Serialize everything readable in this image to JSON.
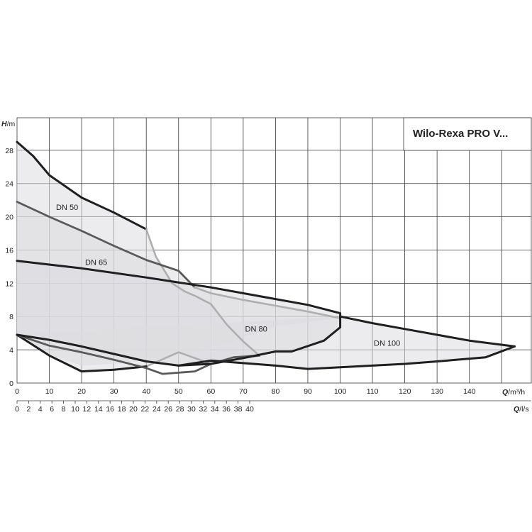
{
  "chart_data": {
    "type": "line",
    "title": "Wilo-Rexa PRO V...",
    "y_axis": {
      "label_var": "H",
      "label_unit": "/m",
      "range": [
        0,
        30
      ],
      "ticks": [
        "0",
        "4",
        "8",
        "12",
        "16",
        "20",
        "24",
        "28"
      ]
    },
    "x_axis_primary": {
      "label_var": "Q",
      "label_unit": "/m³/h",
      "range": [
        0,
        160
      ],
      "ticks": [
        "0",
        "10",
        "20",
        "30",
        "40",
        "50",
        "60",
        "70",
        "80",
        "90",
        "100",
        "110",
        "120",
        "130",
        "140"
      ]
    },
    "x_axis_secondary": {
      "label_var": "Q",
      "label_unit": "/l/s",
      "ticks": [
        "0",
        "2",
        "4",
        "6",
        "8",
        "10",
        "12",
        "14",
        "16",
        "18",
        "20",
        "22",
        "24",
        "26",
        "28",
        "30",
        "32",
        "34",
        "36",
        "38",
        "40"
      ]
    },
    "grid": true,
    "regions": [
      {
        "name": "DN 50",
        "outline": [
          [
            0,
            29
          ],
          [
            5,
            27.3
          ],
          [
            10,
            25
          ],
          [
            20,
            22.3
          ],
          [
            30,
            20.5
          ],
          [
            40,
            18.5
          ],
          [
            43,
            15.2
          ],
          [
            48,
            12
          ],
          [
            52,
            11
          ],
          [
            55,
            10.5
          ],
          [
            60,
            9.5
          ],
          [
            65,
            7
          ],
          [
            70,
            5
          ],
          [
            75,
            3.3
          ],
          [
            70,
            3
          ],
          [
            60,
            2.3
          ],
          [
            50,
            3.7
          ],
          [
            40,
            2
          ],
          [
            30,
            1.6
          ],
          [
            20,
            1.4
          ],
          [
            10,
            3.3
          ],
          [
            0,
            5.8
          ]
        ],
        "curves": [
          {
            "tone": "dark",
            "points": [
              [
                0,
                29
              ],
              [
                5,
                27.3
              ],
              [
                10,
                25
              ],
              [
                20,
                22.3
              ],
              [
                30,
                20.5
              ],
              [
                40,
                18.5
              ]
            ]
          },
          {
            "tone": "light",
            "points": [
              [
                40,
                18.5
              ],
              [
                43,
                15.2
              ],
              [
                48,
                12
              ],
              [
                52,
                11
              ],
              [
                55,
                10.5
              ],
              [
                60,
                9.5
              ],
              [
                65,
                7
              ],
              [
                70,
                5
              ],
              [
                75,
                3.3
              ]
            ]
          },
          {
            "tone": "light",
            "points": [
              [
                75,
                3.3
              ],
              [
                70,
                3
              ],
              [
                60,
                2.3
              ],
              [
                50,
                3.7
              ],
              [
                40,
                2
              ]
            ]
          },
          {
            "tone": "dark",
            "points": [
              [
                40,
                2
              ],
              [
                30,
                1.6
              ],
              [
                20,
                1.4
              ],
              [
                10,
                3.3
              ],
              [
                0,
                5.8
              ]
            ]
          }
        ]
      },
      {
        "name": "DN 65",
        "outline": [
          [
            0,
            21.8
          ],
          [
            10,
            20
          ],
          [
            20,
            18.3
          ],
          [
            30,
            16.5
          ],
          [
            40,
            14.8
          ],
          [
            50,
            13.5
          ],
          [
            55,
            11.5
          ],
          [
            60,
            10.8
          ],
          [
            70,
            10
          ],
          [
            80,
            9.3
          ],
          [
            90,
            8.6
          ],
          [
            100,
            7.8
          ],
          [
            90,
            7.3
          ],
          [
            80,
            6.8
          ],
          [
            70,
            5.5
          ],
          [
            60,
            4
          ],
          [
            50,
            3.5
          ],
          [
            40,
            2.8
          ],
          [
            30,
            2.3
          ],
          [
            20,
            2.1
          ],
          [
            10,
            3.4
          ],
          [
            0,
            5.8
          ]
        ],
        "curves": [
          {
            "tone": "medium",
            "points": [
              [
                0,
                21.8
              ],
              [
                10,
                20
              ],
              [
                20,
                18.3
              ],
              [
                30,
                16.5
              ],
              [
                40,
                14.8
              ],
              [
                50,
                13.5
              ],
              [
                55,
                11.5
              ]
            ]
          },
          {
            "tone": "light",
            "points": [
              [
                55,
                11.5
              ],
              [
                60,
                10.8
              ],
              [
                70,
                10
              ],
              [
                80,
                9.3
              ],
              [
                90,
                8.6
              ],
              [
                100,
                7.8
              ]
            ]
          },
          {
            "tone": "medium",
            "points": [
              [
                0,
                5.8
              ],
              [
                10,
                4.5
              ],
              [
                20,
                3.7
              ],
              [
                30,
                2.8
              ],
              [
                40,
                1.8
              ],
              [
                45,
                1.1
              ],
              [
                55,
                1.4
              ],
              [
                60,
                2.3
              ],
              [
                67,
                3.1
              ],
              [
                75,
                3.3
              ]
            ]
          }
        ]
      },
      {
        "name": "DN 80",
        "outline": [
          [
            0,
            14.7
          ],
          [
            20,
            13.8
          ],
          [
            40,
            12.7
          ],
          [
            60,
            11.5
          ],
          [
            80,
            10.1
          ],
          [
            90,
            9.4
          ],
          [
            100,
            8.4
          ],
          [
            100,
            6.7
          ],
          [
            95,
            5.1
          ],
          [
            85,
            3.8
          ],
          [
            80,
            3.8
          ],
          [
            70,
            3
          ],
          [
            60,
            2.3
          ],
          [
            50,
            2.1
          ],
          [
            40,
            2.6
          ],
          [
            30,
            3.5
          ],
          [
            20,
            4.4
          ],
          [
            10,
            5.2
          ],
          [
            0,
            5.8
          ]
        ],
        "curves": [
          {
            "tone": "dark",
            "points": [
              [
                0,
                14.7
              ],
              [
                20,
                13.8
              ],
              [
                40,
                12.7
              ],
              [
                60,
                11.5
              ],
              [
                80,
                10.1
              ],
              [
                90,
                9.4
              ],
              [
                100,
                8.4
              ],
              [
                100,
                6.7
              ],
              [
                95,
                5.1
              ],
              [
                85,
                3.8
              ],
              [
                80,
                3.8
              ],
              [
                70,
                3
              ],
              [
                60,
                2.3
              ],
              [
                50,
                2.1
              ],
              [
                40,
                2.6
              ],
              [
                30,
                3.5
              ],
              [
                20,
                4.4
              ],
              [
                10,
                5.2
              ],
              [
                0,
                5.8
              ]
            ]
          }
        ]
      },
      {
        "name": "DN 100",
        "outline": [
          [
            100,
            8
          ],
          [
            110,
            7.2
          ],
          [
            120,
            6.5
          ],
          [
            130,
            5.8
          ],
          [
            140,
            5.1
          ],
          [
            154,
            4.4
          ],
          [
            145,
            3.1
          ],
          [
            130,
            2.6
          ],
          [
            120,
            2.3
          ],
          [
            110,
            2.1
          ],
          [
            90,
            1.7
          ],
          [
            80,
            2.1
          ],
          [
            70,
            2.4
          ],
          [
            60,
            2.7
          ],
          [
            50,
            2.1
          ],
          [
            40,
            2.6
          ],
          [
            30,
            3.5
          ],
          [
            20,
            4.4
          ],
          [
            10,
            5.2
          ],
          [
            0,
            5.8
          ]
        ],
        "curves": [
          {
            "tone": "dark",
            "points": [
              [
                100,
                8
              ],
              [
                110,
                7.2
              ],
              [
                120,
                6.5
              ],
              [
                130,
                5.8
              ],
              [
                140,
                5.1
              ],
              [
                154,
                4.4
              ],
              [
                145,
                3.1
              ],
              [
                130,
                2.6
              ],
              [
                120,
                2.3
              ],
              [
                110,
                2.1
              ],
              [
                90,
                1.7
              ],
              [
                80,
                2.1
              ],
              [
                70,
                2.4
              ],
              [
                60,
                2.7
              ],
              [
                50,
                2.1
              ]
            ]
          }
        ]
      }
    ],
    "region_labels": [
      {
        "text": "DN 50",
        "x": 15.5,
        "y": 20.8
      },
      {
        "text": "DN 65",
        "x": 24.5,
        "y": 14.2
      },
      {
        "text": "DN 80",
        "x": 74,
        "y": 6.2
      },
      {
        "text": "DN 100",
        "x": 114.5,
        "y": 4.5
      }
    ],
    "colors": {
      "fill": "#dcdde0",
      "dark": "#1f1f1f",
      "medium": "#5a5a5a",
      "light": "#aeaeae",
      "grid": "#3a3a3a"
    }
  }
}
